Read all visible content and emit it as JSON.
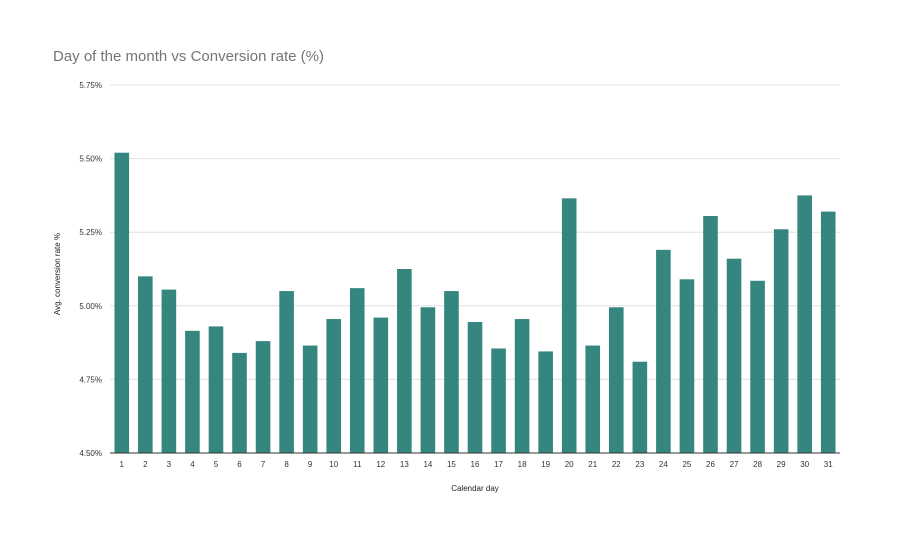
{
  "chart_data": {
    "type": "bar",
    "title": "Day of the month vs Conversion rate (%)",
    "xlabel": "Calendar day",
    "ylabel": "Avg. conversion rate %",
    "categories": [
      "1",
      "2",
      "3",
      "4",
      "5",
      "6",
      "7",
      "8",
      "9",
      "10",
      "11",
      "12",
      "13",
      "14",
      "15",
      "16",
      "17",
      "18",
      "19",
      "20",
      "21",
      "22",
      "23",
      "24",
      "25",
      "26",
      "27",
      "28",
      "29",
      "30",
      "31"
    ],
    "values": [
      5.52,
      5.1,
      5.055,
      4.915,
      4.93,
      4.84,
      4.88,
      5.05,
      4.865,
      4.955,
      5.06,
      4.96,
      5.125,
      4.995,
      5.05,
      4.945,
      4.855,
      4.955,
      4.845,
      5.365,
      4.865,
      4.995,
      4.81,
      5.19,
      5.09,
      5.305,
      5.16,
      5.085,
      5.26,
      5.375,
      5.32
    ],
    "ylim": [
      4.5,
      5.75
    ],
    "yticks": [
      "4.50%",
      "4.75%",
      "5.00%",
      "5.25%",
      "5.50%",
      "5.75%"
    ],
    "ytick_values": [
      4.5,
      4.75,
      5.0,
      5.25,
      5.5,
      5.75
    ],
    "bar_color": "#35867f",
    "grid": true,
    "legend": "none"
  }
}
